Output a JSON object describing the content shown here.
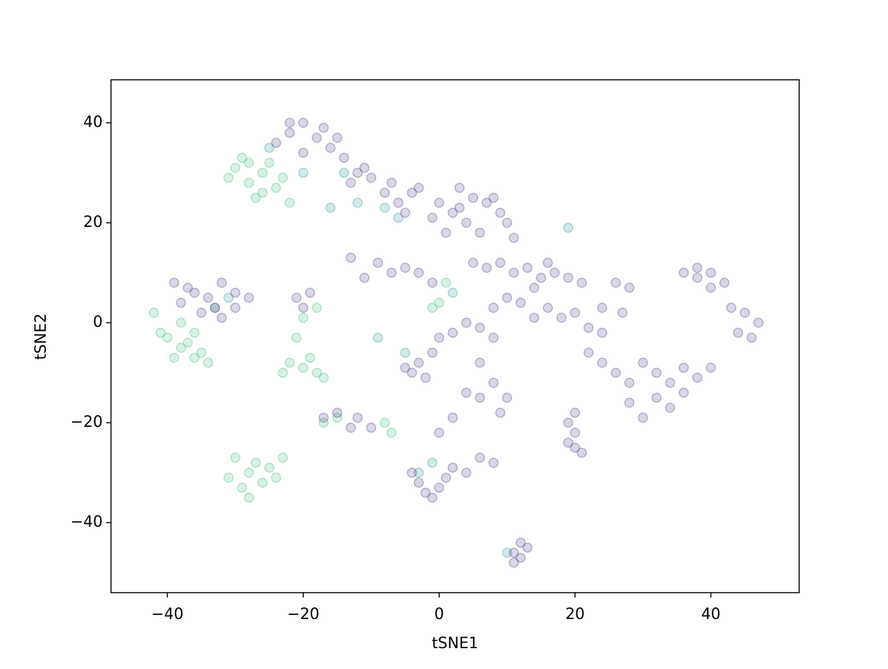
{
  "chart_data": {
    "type": "scatter",
    "xlabel": "tSNE1",
    "ylabel": "tSNE2",
    "xlim": [
      -48.3,
      53.0
    ],
    "ylim": [
      -54.0,
      48.6
    ],
    "xticks": [
      {
        "value": -40,
        "label": "−40"
      },
      {
        "value": -20,
        "label": "−20"
      },
      0,
      20,
      40
    ],
    "yticks": [
      {
        "value": -40,
        "label": "−40"
      },
      {
        "value": -20,
        "label": "−20"
      },
      0,
      20,
      40
    ],
    "series": [
      {
        "color": "#35b779",
        "x": [
          -26,
          -28,
          -30,
          -24,
          -27,
          -25,
          -29,
          -31,
          -23,
          -26,
          -22,
          -28,
          -38,
          -40,
          -36,
          -37,
          -35,
          -39,
          -41,
          -34,
          -38,
          -36,
          -42,
          -28,
          -26,
          -27,
          -29,
          -25,
          -30,
          -24,
          -28,
          -23,
          -31,
          -22,
          -20,
          -18,
          -19,
          -17,
          -23,
          -20,
          -18,
          -21,
          -15,
          -17,
          -7,
          -8,
          0,
          1,
          -1
        ],
        "values": [
          30,
          28,
          31,
          27,
          25,
          32,
          33,
          29,
          29,
          26,
          24,
          32,
          -5,
          -3,
          -7,
          -4,
          -6,
          -7,
          -2,
          -8,
          0,
          -2,
          2,
          -30,
          -32,
          -28,
          -33,
          -29,
          -27,
          -31,
          -35,
          -27,
          -31,
          -8,
          -9,
          -10,
          -7,
          -11,
          -10,
          1,
          3,
          -3,
          -19,
          -20,
          -22,
          -20,
          4,
          8,
          3
        ]
      },
      {
        "color": "#21918c",
        "x": [
          -14,
          -12,
          -8,
          -6,
          -25,
          -20,
          -16,
          -3,
          -1,
          10,
          -33,
          -31,
          -9,
          -5,
          19,
          2
        ],
        "values": [
          30,
          24,
          23,
          21,
          35,
          30,
          23,
          -30,
          -28,
          -46,
          3,
          5,
          -3,
          -6,
          19,
          6
        ]
      },
      {
        "color": "#46337e",
        "x": [
          -22,
          -20,
          -18,
          -24,
          -16,
          -14,
          -12,
          -10,
          -13,
          -8,
          -6,
          -4,
          -5,
          -20,
          -17,
          -11,
          -7,
          -3,
          -22,
          -15,
          0,
          2,
          4,
          3,
          1,
          5,
          -1,
          3,
          7,
          9,
          8,
          10,
          6,
          11,
          5,
          7,
          9,
          11,
          13,
          15,
          17,
          16,
          19,
          21,
          14,
          12,
          10,
          8,
          16,
          18,
          20,
          14,
          22,
          24,
          26,
          28,
          36,
          38,
          40,
          42,
          38,
          40,
          43,
          45,
          47,
          46,
          44,
          32,
          34,
          36,
          30,
          28,
          32,
          36,
          38,
          40,
          26,
          24,
          28,
          34,
          30,
          24,
          27,
          22,
          -3,
          -4,
          -2,
          -5,
          -1,
          0,
          2,
          4,
          6,
          8,
          6,
          8,
          10,
          6,
          4,
          9,
          2,
          0,
          19,
          20,
          19,
          21,
          20,
          20,
          -3,
          -2,
          0,
          1,
          -1,
          2,
          4,
          6,
          8,
          -4,
          11,
          12,
          12,
          11,
          13,
          -38,
          -36,
          -34,
          -32,
          -30,
          -35,
          -33,
          -37,
          -39,
          -28,
          -32,
          -30,
          -21,
          -19,
          -20,
          -9,
          -7,
          -11,
          -5,
          -3,
          -13,
          -1,
          -17,
          -15,
          -13,
          -12,
          -10
        ],
        "values": [
          38,
          40,
          37,
          36,
          35,
          33,
          30,
          29,
          28,
          26,
          24,
          26,
          22,
          34,
          39,
          31,
          28,
          27,
          40,
          37,
          24,
          22,
          20,
          27,
          18,
          25,
          21,
          23,
          24,
          22,
          25,
          20,
          18,
          17,
          12,
          11,
          12,
          10,
          11,
          9,
          10,
          12,
          9,
          8,
          7,
          4,
          5,
          3,
          3,
          1,
          2,
          1,
          -1,
          3,
          8,
          7,
          10,
          9,
          10,
          8,
          11,
          7,
          3,
          2,
          0,
          -3,
          -2,
          -10,
          -12,
          -9,
          -8,
          -12,
          -15,
          -14,
          -11,
          -9,
          -10,
          -8,
          -16,
          -17,
          -19,
          -2,
          2,
          -6,
          -8,
          -10,
          -11,
          -9,
          -6,
          -3,
          -2,
          0,
          -1,
          -3,
          -8,
          -12,
          -15,
          -15,
          -14,
          -18,
          -19,
          -22,
          -20,
          -22,
          -24,
          -26,
          -18,
          -25,
          -32,
          -34,
          -33,
          -31,
          -35,
          -29,
          -30,
          -27,
          -28,
          -30,
          -46,
          -47,
          -44,
          -48,
          -45,
          4,
          6,
          5,
          8,
          6,
          2,
          3,
          7,
          8,
          5,
          1,
          3,
          5,
          6,
          3,
          12,
          10,
          9,
          11,
          10,
          13,
          8,
          -19,
          -18,
          -21,
          -19,
          -21
        ]
      }
    ]
  }
}
